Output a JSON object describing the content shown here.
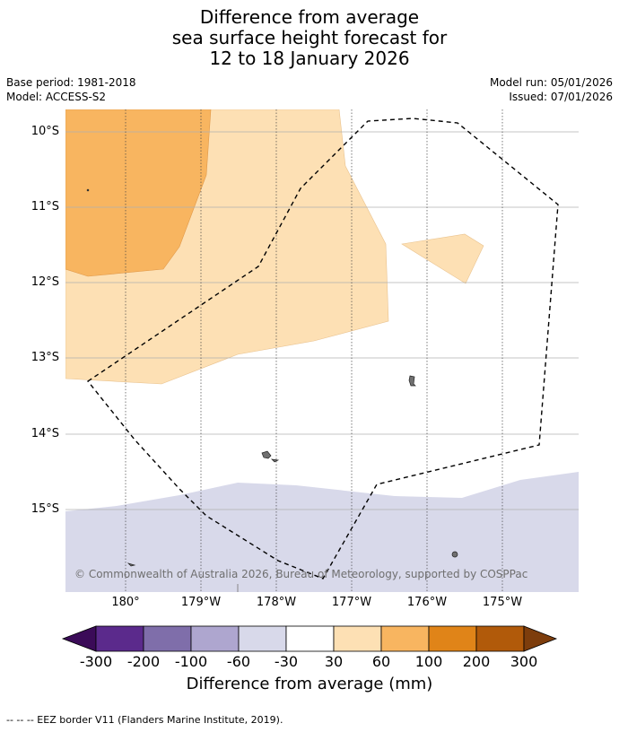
{
  "title": {
    "line1": "Difference from average",
    "line2": "sea surface height forecast for",
    "line3": "12 to 18 January 2026"
  },
  "meta": {
    "base_period": "Base period: 1981-2018",
    "model": "Model: ACCESS-S2",
    "model_run": "Model run: 05/01/2026",
    "issued": "Issued: 07/01/2026"
  },
  "axes": {
    "lat_labels": [
      "10°S",
      "11°S",
      "12°S",
      "13°S",
      "14°S",
      "15°S"
    ],
    "lon_labels": [
      "180°",
      "179°W",
      "178°W",
      "177°W",
      "176°W",
      "175°W"
    ]
  },
  "colorbar": {
    "ticks": [
      "-300",
      "-200",
      "-100",
      "-60",
      "-30",
      "30",
      "60",
      "100",
      "200",
      "300"
    ],
    "colors": {
      "extend_low": "#3b0b58",
      "c1": "#5b2a8c",
      "c2": "#7f6eaa",
      "c3": "#aea6cf",
      "c4": "#d8d9ea",
      "c5": "#ffffff",
      "c6": "#fde0b4",
      "c7": "#f8b560",
      "c8": "#e08418",
      "c9": "#b15a0a",
      "extend_high": "#7d3d0c"
    },
    "label": "Difference from average (mm)"
  },
  "copyright": "© Commonwealth of Australia 2026, Bureau of Meteorology, supported by COSPPac",
  "footnote": "-- -- -- EEZ border V11 (Flanders Marine Institute, 2019)."
}
